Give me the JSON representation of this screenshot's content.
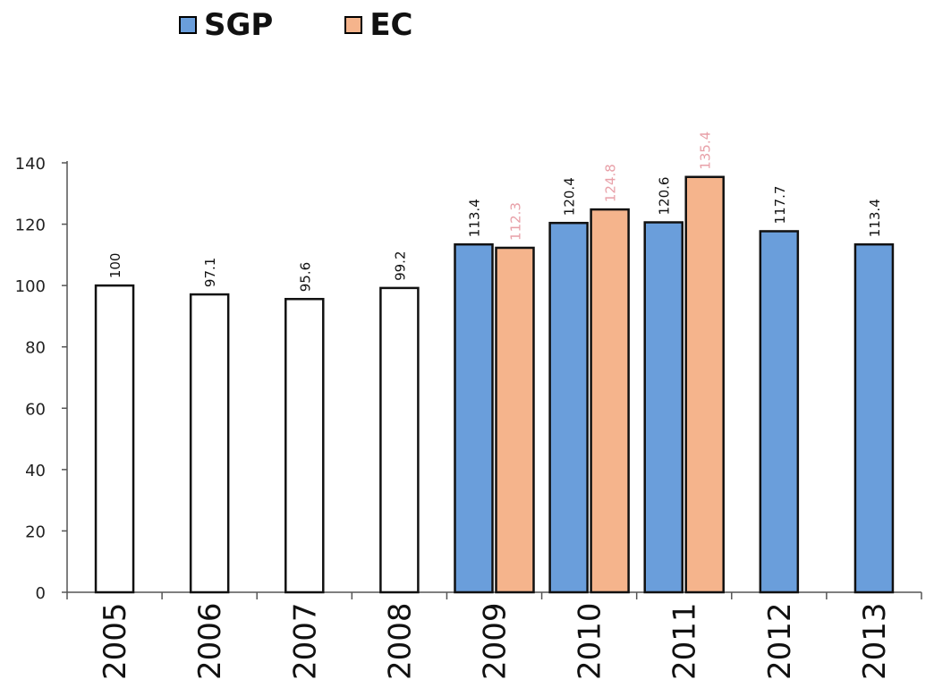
{
  "chart_data": {
    "type": "bar",
    "title": "",
    "xlabel": "",
    "ylabel": "",
    "ylim": [
      0,
      140
    ],
    "yticks": [
      0,
      20,
      40,
      60,
      80,
      100,
      120,
      140
    ],
    "categories": [
      "2005",
      "2006",
      "2007",
      "2008",
      "2009",
      "2010",
      "2011",
      "2012",
      "2013"
    ],
    "legend_position": "top-left",
    "grid": false,
    "series": [
      {
        "name": "",
        "color": "#ffffff",
        "values": [
          100,
          97.1,
          95.6,
          99.2,
          null,
          null,
          null,
          null,
          null
        ],
        "labels": [
          "100",
          "97.1",
          "95.6",
          "99.2",
          "",
          "",
          "",
          "",
          ""
        ]
      },
      {
        "name": "SGP",
        "color": "#6a9edb",
        "values": [
          null,
          null,
          null,
          null,
          113.4,
          120.4,
          120.6,
          117.7,
          113.4
        ],
        "labels": [
          "",
          "",
          "",
          "",
          "113.4",
          "120.4",
          "120.6",
          "117.7",
          "113.4"
        ]
      },
      {
        "name": "EC",
        "color": "#f5b48c",
        "values": [
          null,
          null,
          null,
          null,
          112.3,
          124.8,
          135.4,
          null,
          null
        ],
        "labels": [
          "",
          "",
          "",
          "",
          "112.3",
          "124.8",
          "135.4",
          "",
          ""
        ]
      }
    ]
  },
  "legend": [
    {
      "name": "SGP",
      "color": "#6a9edb"
    },
    {
      "name": "EC",
      "color": "#f5b48c"
    }
  ]
}
